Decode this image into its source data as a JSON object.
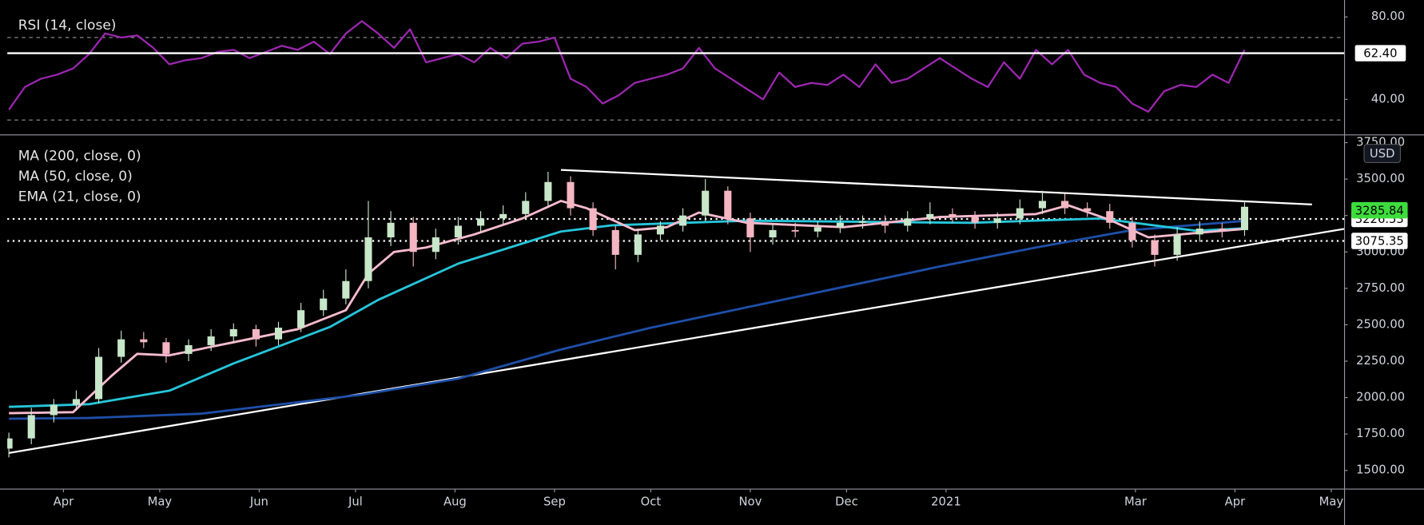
{
  "chart_data": [
    {
      "type": "line",
      "series": [
        {
          "name": "RSI (14, close)",
          "color": "#9c27b0",
          "x": [
            0,
            5,
            10,
            15,
            20,
            25,
            30,
            35,
            40,
            45,
            50,
            55,
            60,
            65,
            70,
            75,
            80,
            85,
            90,
            95,
            100,
            105,
            110,
            115,
            120,
            125,
            130,
            135,
            140,
            145,
            150,
            155,
            160,
            165,
            170,
            175,
            180,
            185,
            190,
            195,
            200,
            205,
            210,
            215,
            220,
            225,
            230,
            235,
            240,
            245,
            250,
            255,
            260,
            265,
            270,
            275,
            280,
            285,
            290,
            295,
            300,
            305,
            310,
            315,
            320,
            325,
            330,
            335,
            340,
            345,
            350,
            355,
            360,
            365,
            370,
            375,
            380,
            385
          ],
          "values": [
            35,
            46,
            50,
            52,
            55,
            62,
            72,
            70,
            71,
            65,
            57,
            59,
            60,
            63,
            64,
            60,
            63,
            66,
            64,
            68,
            62,
            72,
            78,
            72,
            65,
            74,
            58,
            60,
            62,
            58,
            65,
            60,
            67,
            68,
            70,
            50,
            46,
            38,
            42,
            48,
            50,
            52,
            55,
            65,
            55,
            50,
            45,
            40,
            53,
            46,
            48,
            47,
            52,
            46,
            57,
            48,
            50,
            55,
            60,
            55,
            50,
            46,
            58,
            50,
            64,
            57,
            64,
            52,
            48,
            46,
            38,
            34,
            44,
            47,
            46,
            52,
            48,
            64
          ]
        }
      ],
      "bands": [
        70,
        30
      ],
      "last_value": {
        "value": 62.4,
        "label": "62.40"
      },
      "xlim": [
        -0.5,
        416
      ],
      "ylim": [
        23,
        86
      ],
      "yticks": [
        {
          "value": 40,
          "label": "40.00"
        },
        {
          "value": 80,
          "label": "80.00"
        }
      ]
    },
    {
      "type": "candlestick",
      "price_unit": "USD",
      "up_color": "#c8e6c9",
      "down_color": "#f4b6c2",
      "x": [
        0,
        7,
        14,
        21,
        28,
        35,
        42,
        49,
        56,
        63,
        70,
        77,
        84,
        91,
        98,
        105,
        112,
        119,
        126,
        133,
        140,
        147,
        154,
        161,
        168,
        175,
        182,
        189,
        196,
        203,
        210,
        217,
        224,
        231,
        238,
        245,
        252,
        259,
        266,
        273,
        280,
        287,
        294,
        301,
        308,
        315,
        322,
        329,
        336,
        343,
        350,
        357,
        364,
        371,
        378,
        385
      ],
      "open": [
        1650,
        1720,
        1880,
        1950,
        1990,
        2280,
        2400,
        2380,
        2300,
        2360,
        2420,
        2470,
        2400,
        2480,
        2600,
        2680,
        2800,
        3100,
        3200,
        3000,
        3100,
        3180,
        3230,
        3260,
        3350,
        3480,
        3300,
        3150,
        2980,
        3120,
        3180,
        3250,
        3420,
        3230,
        3100,
        3150,
        3140,
        3170,
        3200,
        3210,
        3180,
        3230,
        3260,
        3240,
        3200,
        3230,
        3300,
        3350,
        3300,
        3280,
        3200,
        3080,
        2980,
        3120,
        3160,
        3150
      ],
      "high": [
        1760,
        1930,
        1990,
        2050,
        2340,
        2460,
        2450,
        2410,
        2400,
        2470,
        2510,
        2500,
        2520,
        2650,
        2740,
        2880,
        3350,
        3280,
        3240,
        3160,
        3240,
        3280,
        3320,
        3410,
        3550,
        3520,
        3340,
        3180,
        3160,
        3210,
        3300,
        3500,
        3450,
        3270,
        3190,
        3200,
        3210,
        3250,
        3250,
        3250,
        3280,
        3340,
        3300,
        3280,
        3270,
        3360,
        3420,
        3400,
        3340,
        3330,
        3240,
        3120,
        3170,
        3210,
        3200,
        3350
      ],
      "low": [
        1590,
        1680,
        1830,
        1910,
        1960,
        2240,
        2340,
        2240,
        2250,
        2320,
        2380,
        2350,
        2360,
        2450,
        2560,
        2640,
        2750,
        3040,
        2900,
        2950,
        3050,
        3130,
        3190,
        3220,
        3310,
        3250,
        3110,
        2880,
        2930,
        3080,
        3140,
        3210,
        3190,
        3000,
        3050,
        3100,
        3100,
        3130,
        3160,
        3130,
        3140,
        3190,
        3200,
        3160,
        3160,
        3190,
        3260,
        3260,
        3240,
        3160,
        3030,
        2900,
        2940,
        3070,
        3100,
        3110
      ],
      "close": [
        1720,
        1880,
        1950,
        1990,
        2280,
        2400,
        2380,
        2300,
        2360,
        2420,
        2470,
        2400,
        2480,
        2600,
        2680,
        2800,
        3100,
        3200,
        3000,
        3100,
        3180,
        3230,
        3260,
        3350,
        3480,
        3300,
        3150,
        2980,
        3120,
        3180,
        3250,
        3420,
        3230,
        3100,
        3150,
        3140,
        3170,
        3200,
        3210,
        3180,
        3230,
        3260,
        3240,
        3200,
        3230,
        3300,
        3350,
        3300,
        3280,
        3200,
        3080,
        2980,
        3120,
        3160,
        3150,
        3310
      ],
      "series": [
        {
          "name": "MA (200, close, 0)",
          "color": "#1e4fa8",
          "x": [
            0,
            25,
            60,
            110,
            140,
            172,
            200,
            230,
            260,
            290,
            320,
            350,
            386
          ],
          "values": [
            1855,
            1860,
            1890,
            2020,
            2130,
            2330,
            2480,
            2620,
            2760,
            2900,
            3030,
            3150,
            3215
          ]
        },
        {
          "name": "MA (50, close, 0)",
          "color": "#26c6da",
          "x": [
            0,
            25,
            50,
            70,
            100,
            115,
            140,
            172,
            188,
            230,
            300,
            340,
            370,
            386
          ],
          "values": [
            1936,
            1955,
            2048,
            2235,
            2485,
            2670,
            2920,
            3140,
            3183,
            3214,
            3200,
            3230,
            3145,
            3164
          ]
        },
        {
          "name": "EMA (21, close, 0)",
          "color": "#f8bbd0",
          "x": [
            0,
            20,
            32,
            40,
            50,
            70,
            90,
            105,
            112,
            120,
            130,
            145,
            160,
            172,
            180,
            195,
            205,
            215,
            230,
            260,
            290,
            320,
            330,
            343,
            355,
            370,
            386
          ],
          "values": [
            1893,
            1900,
            2150,
            2300,
            2290,
            2380,
            2470,
            2600,
            2850,
            3000,
            3030,
            3120,
            3230,
            3350,
            3300,
            3150,
            3170,
            3270,
            3200,
            3170,
            3240,
            3260,
            3320,
            3220,
            3100,
            3130,
            3160
          ]
        }
      ],
      "trendlines": [
        {
          "x": [
            172,
            406
          ],
          "values": [
            3563,
            3326
          ]
        },
        {
          "x": [
            0,
            416
          ],
          "values": [
            1620,
            3158
          ]
        }
      ],
      "levels": [
        3226.53,
        3075.35
      ],
      "last_price": 3285.84,
      "xlim": [
        -0.5,
        416
      ],
      "ylim": [
        1375,
        3794
      ],
      "yticks": [
        {
          "value": 1500,
          "label": "1500.00"
        },
        {
          "value": 1750,
          "label": "1750.00"
        },
        {
          "value": 2000,
          "label": "2000.00"
        },
        {
          "value": 2250,
          "label": "2250.00"
        },
        {
          "value": 2500,
          "label": "2500.00"
        },
        {
          "value": 2750,
          "label": "2750.00"
        },
        {
          "value": 3000,
          "label": "3000.00"
        },
        {
          "value": 3250,
          "label": "3250.00"
        },
        {
          "value": 3500,
          "label": "3500.00"
        },
        {
          "value": 3750,
          "label": "3750.00"
        }
      ],
      "xticks": [
        {
          "value": 17,
          "label": "Apr"
        },
        {
          "value": 47,
          "label": "May"
        },
        {
          "value": 78,
          "label": "Jun"
        },
        {
          "value": 108,
          "label": "Jul"
        },
        {
          "value": 139,
          "label": "Aug"
        },
        {
          "value": 170,
          "label": "Sep"
        },
        {
          "value": 200,
          "label": "Oct"
        },
        {
          "value": 231,
          "label": "Nov"
        },
        {
          "value": 261,
          "label": "Dec"
        },
        {
          "value": 292,
          "label": "2021"
        },
        {
          "value": 351,
          "label": "Mar"
        },
        {
          "value": 382,
          "label": "Apr"
        },
        {
          "value": 412,
          "label": "May"
        }
      ]
    }
  ]
}
